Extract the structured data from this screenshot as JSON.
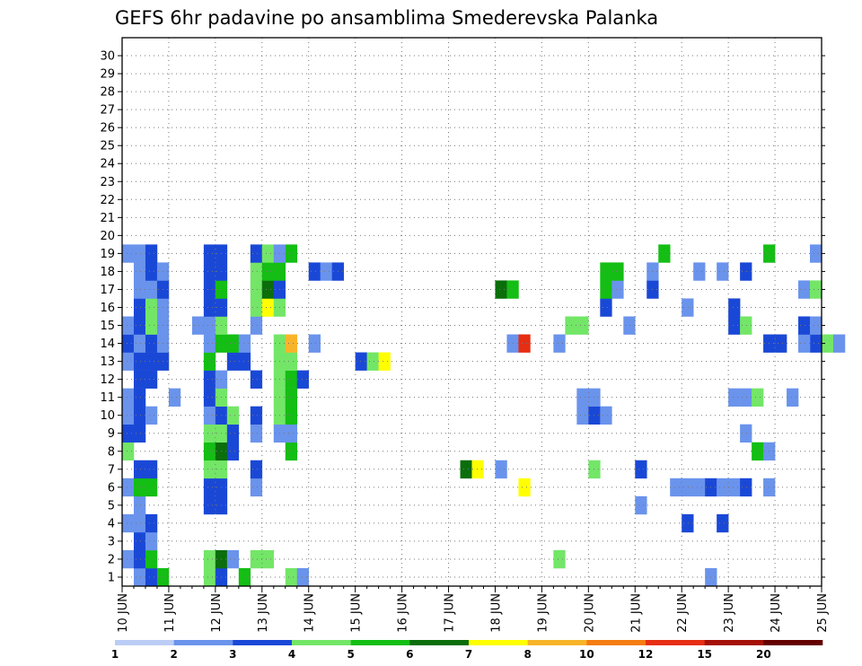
{
  "chart_data": {
    "type": "heatmap",
    "title": "GEFS 6hr padavine po ansamblima Smederevska Palanka",
    "x_ticks": [
      "10 JUN",
      "11 JUN",
      "12 JUN",
      "13 JUN",
      "14 JUN",
      "15 JUN",
      "16 JUN",
      "17 JUN",
      "18 JUN",
      "19 JUN",
      "20 JUN",
      "21 JUN",
      "22 JUN",
      "23 JUN",
      "24 JUN",
      "25 JUN"
    ],
    "x_range": [
      "10 JUN 00Z",
      "25 JUN 00Z"
    ],
    "time_step_hours": 6,
    "y_ticks": [
      "1",
      "2",
      "3",
      "4",
      "5",
      "6",
      "7",
      "8",
      "9",
      "10",
      "11",
      "12",
      "13",
      "14",
      "15",
      "16",
      "17",
      "18",
      "19",
      "20",
      "21",
      "22",
      "23",
      "24",
      "25",
      "26",
      "27",
      "28",
      "29",
      "30"
    ],
    "ylim": [
      0,
      30
    ],
    "grid": true,
    "colorbar": {
      "thresholds": [
        "1",
        "2",
        "3",
        "4",
        "5",
        "6",
        "7",
        "8",
        "10",
        "12",
        "15",
        "20"
      ],
      "colors": [
        "#bccdf5",
        "#6a93ec",
        "#1a48d6",
        "#73e667",
        "#14be14",
        "#0b6e0b",
        "#ffff00",
        "#f8b429",
        "#f57c12",
        "#e62e13",
        "#a41006",
        "#640000"
      ]
    },
    "cells": [
      [
        0,
        "10 JUN 06Z",
        1
      ],
      [
        0,
        "10 JUN 12Z",
        2
      ],
      [
        0,
        "10 JUN 18Z",
        4
      ],
      [
        0,
        "11 JUN 18Z",
        3
      ],
      [
        0,
        "12 JUN 00Z",
        2
      ],
      [
        0,
        "12 JUN 12Z",
        4
      ],
      [
        0,
        "13 JUN 12Z",
        3
      ],
      [
        0,
        "13 JUN 18Z",
        1
      ],
      [
        0,
        "22 JUN 12Z",
        1
      ],
      [
        1,
        "10 JUN 00Z",
        1
      ],
      [
        1,
        "10 JUN 06Z",
        2
      ],
      [
        1,
        "10 JUN 12Z",
        4
      ],
      [
        1,
        "11 JUN 18Z",
        3
      ],
      [
        1,
        "12 JUN 00Z",
        5
      ],
      [
        1,
        "12 JUN 06Z",
        1
      ],
      [
        1,
        "12 JUN 18Z",
        3
      ],
      [
        1,
        "13 JUN 00Z",
        3
      ],
      [
        1,
        "19 JUN 06Z",
        3
      ],
      [
        2,
        "10 JUN 06Z",
        2
      ],
      [
        2,
        "10 JUN 12Z",
        1
      ],
      [
        3,
        "10 JUN 00Z",
        1
      ],
      [
        3,
        "10 JUN 06Z",
        1
      ],
      [
        3,
        "10 JUN 12Z",
        2
      ],
      [
        3,
        "22 JUN 00Z",
        2
      ],
      [
        3,
        "22 JUN 18Z",
        2
      ],
      [
        4,
        "10 JUN 06Z",
        1
      ],
      [
        4,
        "11 JUN 18Z",
        2
      ],
      [
        4,
        "12 JUN 00Z",
        2
      ],
      [
        4,
        "21 JUN 00Z",
        1
      ],
      [
        5,
        "10 JUN 00Z",
        1
      ],
      [
        5,
        "10 JUN 06Z",
        4
      ],
      [
        5,
        "10 JUN 12Z",
        4
      ],
      [
        5,
        "11 JUN 18Z",
        2
      ],
      [
        5,
        "12 JUN 00Z",
        2
      ],
      [
        5,
        "12 JUN 18Z",
        1
      ],
      [
        5,
        "18 JUN 12Z",
        6
      ],
      [
        5,
        "21 JUN 18Z",
        1
      ],
      [
        5,
        "22 JUN 00Z",
        1
      ],
      [
        5,
        "22 JUN 06Z",
        1
      ],
      [
        5,
        "22 JUN 12Z",
        2
      ],
      [
        5,
        "22 JUN 18Z",
        1
      ],
      [
        5,
        "23 JUN 00Z",
        1
      ],
      [
        5,
        "23 JUN 06Z",
        2
      ],
      [
        5,
        "23 JUN 18Z",
        1
      ],
      [
        6,
        "10 JUN 06Z",
        2
      ],
      [
        6,
        "10 JUN 12Z",
        2
      ],
      [
        6,
        "11 JUN 18Z",
        3
      ],
      [
        6,
        "12 JUN 00Z",
        3
      ],
      [
        6,
        "12 JUN 18Z",
        2
      ],
      [
        6,
        "17 JUN 06Z",
        5
      ],
      [
        6,
        "17 JUN 12Z",
        6
      ],
      [
        6,
        "18 JUN 00Z",
        1
      ],
      [
        6,
        "20 JUN 00Z",
        3
      ],
      [
        6,
        "21 JUN 00Z",
        2
      ],
      [
        7,
        "10 JUN 00Z",
        3
      ],
      [
        7,
        "11 JUN 18Z",
        4
      ],
      [
        7,
        "12 JUN 00Z",
        5
      ],
      [
        7,
        "12 JUN 06Z",
        2
      ],
      [
        7,
        "13 JUN 12Z",
        4
      ],
      [
        7,
        "23 JUN 12Z",
        4
      ],
      [
        7,
        "23 JUN 18Z",
        1
      ],
      [
        8,
        "10 JUN 00Z",
        2
      ],
      [
        8,
        "10 JUN 06Z",
        2
      ],
      [
        8,
        "11 JUN 18Z",
        3
      ],
      [
        8,
        "12 JUN 00Z",
        3
      ],
      [
        8,
        "12 JUN 06Z",
        2
      ],
      [
        8,
        "12 JUN 18Z",
        1
      ],
      [
        8,
        "13 JUN 06Z",
        1
      ],
      [
        8,
        "13 JUN 12Z",
        1
      ],
      [
        8,
        "23 JUN 06Z",
        1
      ],
      [
        9,
        "10 JUN 00Z",
        1
      ],
      [
        9,
        "10 JUN 06Z",
        2
      ],
      [
        9,
        "10 JUN 12Z",
        1
      ],
      [
        9,
        "11 JUN 18Z",
        1
      ],
      [
        9,
        "12 JUN 00Z",
        2
      ],
      [
        9,
        "12 JUN 06Z",
        3
      ],
      [
        9,
        "12 JUN 18Z",
        2
      ],
      [
        9,
        "13 JUN 06Z",
        3
      ],
      [
        9,
        "13 JUN 12Z",
        4
      ],
      [
        9,
        "19 JUN 18Z",
        1
      ],
      [
        9,
        "20 JUN 00Z",
        2
      ],
      [
        9,
        "20 JUN 06Z",
        1
      ],
      [
        10,
        "10 JUN 00Z",
        1
      ],
      [
        10,
        "10 JUN 06Z",
        2
      ],
      [
        10,
        "11 JUN 00Z",
        1
      ],
      [
        10,
        "11 JUN 18Z",
        2
      ],
      [
        10,
        "12 JUN 00Z",
        3
      ],
      [
        10,
        "13 JUN 06Z",
        3
      ],
      [
        10,
        "13 JUN 12Z",
        4
      ],
      [
        10,
        "19 JUN 18Z",
        1
      ],
      [
        10,
        "20 JUN 00Z",
        1
      ],
      [
        10,
        "23 JUN 00Z",
        1
      ],
      [
        10,
        "23 JUN 06Z",
        1
      ],
      [
        10,
        "23 JUN 12Z",
        3
      ],
      [
        10,
        "24 JUN 06Z",
        1
      ],
      [
        11,
        "10 JUN 06Z",
        2
      ],
      [
        11,
        "10 JUN 12Z",
        2
      ],
      [
        11,
        "11 JUN 18Z",
        2
      ],
      [
        11,
        "12 JUN 00Z",
        1
      ],
      [
        11,
        "12 JUN 18Z",
        2
      ],
      [
        11,
        "13 JUN 06Z",
        3
      ],
      [
        11,
        "13 JUN 12Z",
        4
      ],
      [
        11,
        "13 JUN 18Z",
        2
      ],
      [
        12,
        "10 JUN 00Z",
        1
      ],
      [
        12,
        "10 JUN 06Z",
        2
      ],
      [
        12,
        "10 JUN 12Z",
        2
      ],
      [
        12,
        "10 JUN 18Z",
        2
      ],
      [
        12,
        "11 JUN 18Z",
        4
      ],
      [
        12,
        "12 JUN 06Z",
        2
      ],
      [
        12,
        "12 JUN 12Z",
        2
      ],
      [
        12,
        "13 JUN 06Z",
        3
      ],
      [
        12,
        "13 JUN 12Z",
        3
      ],
      [
        12,
        "15 JUN 00Z",
        2
      ],
      [
        12,
        "15 JUN 06Z",
        3
      ],
      [
        12,
        "15 JUN 12Z",
        6
      ],
      [
        13,
        "10 JUN 00Z",
        2
      ],
      [
        13,
        "10 JUN 06Z",
        1
      ],
      [
        13,
        "10 JUN 12Z",
        2
      ],
      [
        13,
        "10 JUN 18Z",
        1
      ],
      [
        13,
        "11 JUN 18Z",
        1
      ],
      [
        13,
        "12 JUN 00Z",
        4
      ],
      [
        13,
        "12 JUN 06Z",
        4
      ],
      [
        13,
        "12 JUN 12Z",
        1
      ],
      [
        13,
        "13 JUN 06Z",
        3
      ],
      [
        13,
        "13 JUN 12Z",
        7
      ],
      [
        13,
        "14 JUN 00Z",
        1
      ],
      [
        13,
        "18 JUN 06Z",
        1
      ],
      [
        13,
        "18 JUN 12Z",
        9
      ],
      [
        13,
        "19 JUN 06Z",
        1
      ],
      [
        13,
        "23 JUN 18Z",
        2
      ],
      [
        13,
        "24 JUN 00Z",
        2
      ],
      [
        13,
        "24 JUN 18Z",
        2
      ],
      [
        13,
        "24 JUN 12Z",
        1
      ],
      [
        13,
        "25 JUN 00Z",
        3
      ],
      [
        13,
        "25 JUN 06Z",
        1
      ],
      [
        14,
        "10 JUN 00Z",
        1
      ],
      [
        14,
        "10 JUN 06Z",
        2
      ],
      [
        14,
        "10 JUN 12Z",
        3
      ],
      [
        14,
        "10 JUN 18Z",
        1
      ],
      [
        14,
        "11 JUN 12Z",
        1
      ],
      [
        14,
        "11 JUN 18Z",
        1
      ],
      [
        14,
        "12 JUN 00Z",
        3
      ],
      [
        14,
        "12 JUN 18Z",
        1
      ],
      [
        14,
        "19 JUN 12Z",
        3
      ],
      [
        14,
        "19 JUN 18Z",
        3
      ],
      [
        14,
        "20 JUN 18Z",
        1
      ],
      [
        14,
        "23 JUN 00Z",
        2
      ],
      [
        14,
        "23 JUN 06Z",
        3
      ],
      [
        14,
        "24 JUN 12Z",
        2
      ],
      [
        14,
        "24 JUN 18Z",
        1
      ],
      [
        15,
        "10 JUN 06Z",
        2
      ],
      [
        15,
        "10 JUN 12Z",
        3
      ],
      [
        15,
        "10 JUN 18Z",
        1
      ],
      [
        15,
        "11 JUN 18Z",
        2
      ],
      [
        15,
        "12 JUN 00Z",
        2
      ],
      [
        15,
        "12 JUN 18Z",
        3
      ],
      [
        15,
        "13 JUN 00Z",
        6
      ],
      [
        15,
        "13 JUN 06Z",
        3
      ],
      [
        15,
        "20 JUN 06Z",
        2
      ],
      [
        15,
        "22 JUN 00Z",
        1
      ],
      [
        15,
        "23 JUN 00Z",
        2
      ],
      [
        16,
        "10 JUN 06Z",
        1
      ],
      [
        16,
        "10 JUN 12Z",
        1
      ],
      [
        16,
        "10 JUN 18Z",
        2
      ],
      [
        16,
        "11 JUN 18Z",
        2
      ],
      [
        16,
        "12 JUN 00Z",
        4
      ],
      [
        16,
        "12 JUN 18Z",
        3
      ],
      [
        16,
        "13 JUN 00Z",
        5
      ],
      [
        16,
        "13 JUN 06Z",
        2
      ],
      [
        16,
        "18 JUN 00Z",
        5
      ],
      [
        16,
        "18 JUN 06Z",
        4
      ],
      [
        16,
        "20 JUN 06Z",
        4
      ],
      [
        16,
        "20 JUN 12Z",
        1
      ],
      [
        16,
        "21 JUN 06Z",
        2
      ],
      [
        16,
        "24 JUN 12Z",
        1
      ],
      [
        16,
        "24 JUN 18Z",
        3
      ],
      [
        17,
        "10 JUN 06Z",
        1
      ],
      [
        17,
        "10 JUN 12Z",
        2
      ],
      [
        17,
        "10 JUN 18Z",
        1
      ],
      [
        17,
        "11 JUN 18Z",
        2
      ],
      [
        17,
        "12 JUN 00Z",
        2
      ],
      [
        17,
        "12 JUN 18Z",
        3
      ],
      [
        17,
        "13 JUN 00Z",
        4
      ],
      [
        17,
        "13 JUN 06Z",
        4
      ],
      [
        17,
        "14 JUN 00Z",
        2
      ],
      [
        17,
        "14 JUN 06Z",
        1
      ],
      [
        17,
        "14 JUN 12Z",
        2
      ],
      [
        17,
        "20 JUN 06Z",
        4
      ],
      [
        17,
        "20 JUN 12Z",
        4
      ],
      [
        17,
        "21 JUN 06Z",
        1
      ],
      [
        17,
        "22 JUN 06Z",
        1
      ],
      [
        17,
        "22 JUN 18Z",
        1
      ],
      [
        17,
        "23 JUN 06Z",
        2
      ],
      [
        18,
        "10 JUN 00Z",
        1
      ],
      [
        18,
        "10 JUN 06Z",
        1
      ],
      [
        18,
        "10 JUN 12Z",
        2
      ],
      [
        18,
        "11 JUN 18Z",
        2
      ],
      [
        18,
        "12 JUN 00Z",
        2
      ],
      [
        18,
        "12 JUN 18Z",
        2
      ],
      [
        18,
        "13 JUN 00Z",
        3
      ],
      [
        18,
        "13 JUN 12Z",
        4
      ],
      [
        18,
        "13 JUN 06Z",
        1
      ],
      [
        18,
        "21 JUN 12Z",
        4
      ],
      [
        18,
        "23 JUN 18Z",
        4
      ],
      [
        18,
        "24 JUN 18Z",
        1
      ]
    ]
  }
}
